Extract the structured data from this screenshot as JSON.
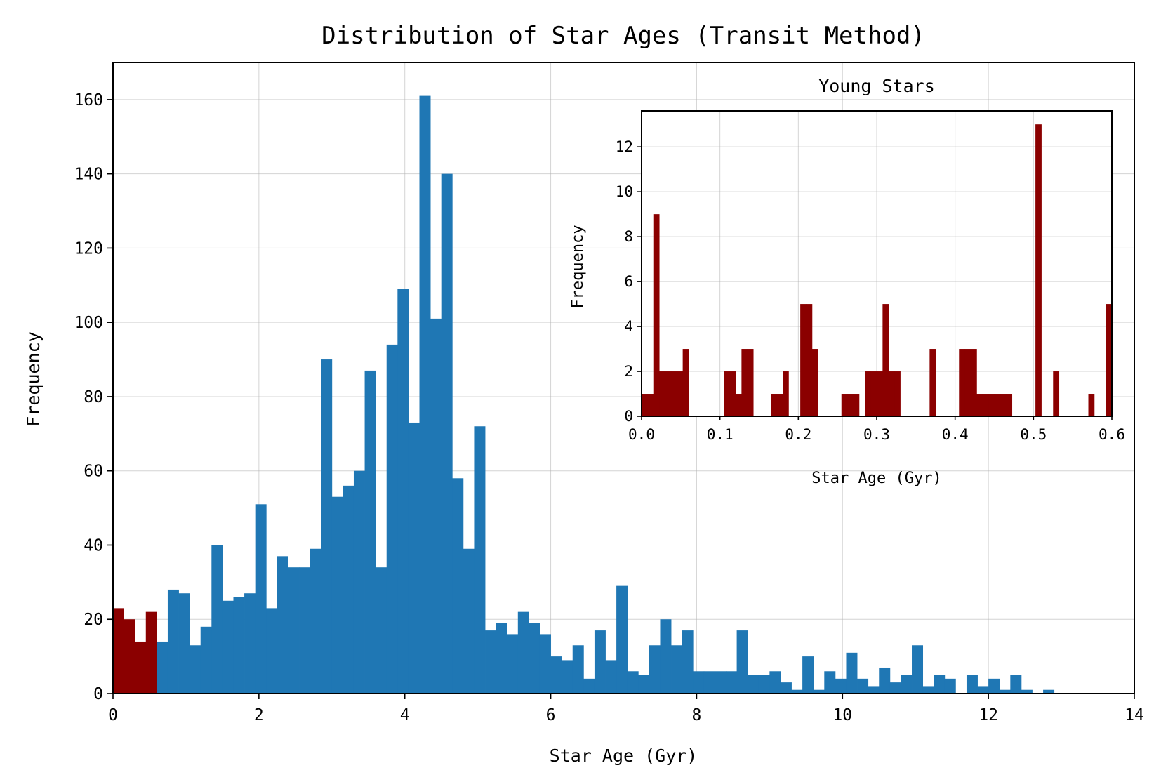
{
  "chart_data": [
    {
      "type": "bar",
      "title": "Distribution of Star Ages (Transit Method)",
      "xlabel": "Star Age (Gyr)",
      "ylabel": "Frequency",
      "xlim": [
        0,
        14
      ],
      "ylim": [
        0,
        170
      ],
      "xticks": [
        0,
        2,
        4,
        6,
        8,
        10,
        12,
        14
      ],
      "yticks": [
        0,
        20,
        40,
        60,
        80,
        100,
        120,
        140,
        160
      ],
      "grid": true,
      "bin_start": 0,
      "bin_width": 0.15,
      "colors": {
        "main": "#1f77b4",
        "young": "#8b0000"
      },
      "young_cutoff": 0.6,
      "values": [
        23,
        20,
        14,
        22,
        14,
        28,
        27,
        13,
        18,
        40,
        25,
        26,
        27,
        51,
        23,
        37,
        34,
        34,
        39,
        90,
        53,
        56,
        60,
        87,
        34,
        94,
        109,
        73,
        161,
        101,
        140,
        58,
        39,
        72,
        17,
        19,
        16,
        22,
        19,
        16,
        10,
        9,
        13,
        4,
        17,
        9,
        29,
        6,
        5,
        13,
        20,
        13,
        17,
        6,
        6,
        6,
        6,
        17,
        5,
        5,
        6,
        3,
        1,
        10,
        1,
        6,
        4,
        11,
        4,
        2,
        7,
        3,
        5,
        13,
        2,
        5,
        4,
        0,
        5,
        2,
        4,
        1,
        5,
        1,
        0,
        1
      ]
    },
    {
      "type": "bar",
      "title": "Young Stars",
      "xlabel": "Star Age (Gyr)",
      "ylabel": "Frequency",
      "xlim": [
        0,
        0.6
      ],
      "ylim": [
        0,
        13.6
      ],
      "xticks": [
        0.0,
        0.1,
        0.2,
        0.3,
        0.4,
        0.5,
        0.6
      ],
      "yticks": [
        0,
        2,
        4,
        6,
        8,
        10,
        12
      ],
      "grid": true,
      "bin_start": 0,
      "bin_width": 0.0075,
      "color": "#8b0000",
      "values": [
        1,
        1,
        9,
        2,
        2,
        2,
        2,
        3,
        0,
        0,
        0,
        0,
        0,
        0,
        2,
        2,
        1,
        3,
        3,
        0,
        0,
        0,
        1,
        1,
        2,
        0,
        0,
        5,
        5,
        3,
        0,
        0,
        0,
        0,
        1,
        1,
        1,
        0,
        2,
        2,
        2,
        5,
        2,
        2,
        0,
        0,
        0,
        0,
        0,
        3,
        0,
        0,
        0,
        0,
        3,
        3,
        3,
        1,
        1,
        1,
        1,
        1,
        1,
        0,
        0,
        0,
        0,
        13,
        0,
        0,
        2,
        0,
        0,
        0,
        0,
        0,
        1,
        0,
        0,
        5,
        5
      ]
    }
  ]
}
